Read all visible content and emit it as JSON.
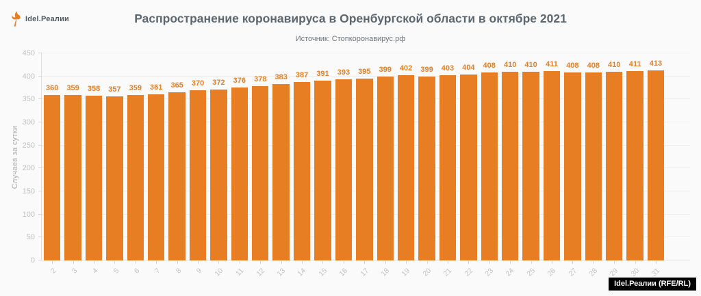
{
  "logo": {
    "text": "Idel.Реалии",
    "icon": "torch-flame-icon",
    "color": "#E87E23"
  },
  "title": "Распространение коронавируса в Оренбургской области в октябре 2021",
  "subtitle": "Источник: Стопкоронавирус.рф",
  "watermark": "Idel.Реалии (RFE/RL)",
  "colors": {
    "bar": "#E87E23",
    "value_label": "#E87E23",
    "title": "#5C6770",
    "subtitle": "#6F7478",
    "axis_text": "#C2C2C2",
    "grid": "#EDEDED",
    "background": "#FAFAFB",
    "watermark_bg": "#000000"
  },
  "chart_data": {
    "type": "bar",
    "title": "Распространение коронавируса в Оренбургской области в октябре 2021",
    "source": "Источник: Стопкоронавирус.рф",
    "xlabel": "",
    "ylabel": "Случаев за сутки",
    "ylim": [
      0,
      450
    ],
    "yticks": [
      0,
      50,
      100,
      150,
      200,
      250,
      300,
      350,
      400,
      450
    ],
    "grid": true,
    "legend": false,
    "bar_labels_shown": true,
    "categories": [
      "2",
      "3",
      "4",
      "5",
      "6",
      "7",
      "8",
      "9",
      "10",
      "11",
      "12",
      "13",
      "14",
      "15",
      "16",
      "17",
      "18",
      "19",
      "20",
      "21",
      "22",
      "23",
      "24",
      "25",
      "26",
      "27",
      "28",
      "29",
      "30",
      "31"
    ],
    "values": [
      360,
      359,
      358,
      357,
      359,
      361,
      365,
      370,
      372,
      376,
      378,
      383,
      387,
      391,
      393,
      395,
      399,
      402,
      399,
      403,
      404,
      408,
      410,
      410,
      411,
      408,
      408,
      410,
      411,
      413
    ]
  }
}
